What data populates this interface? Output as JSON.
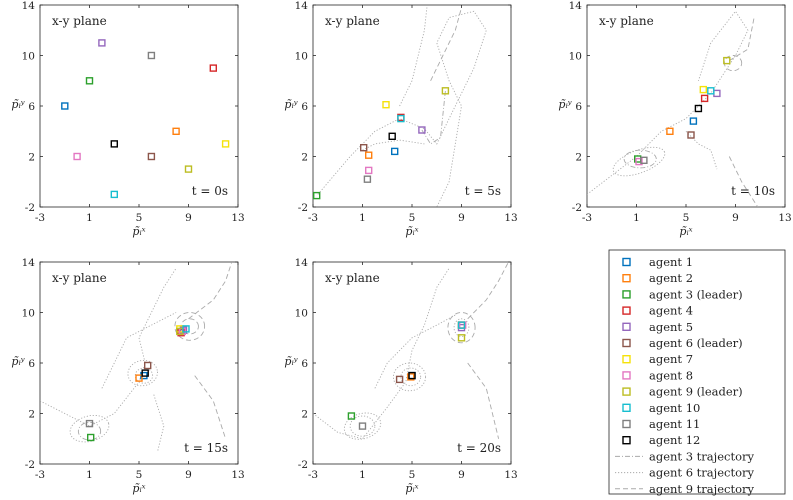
{
  "chart_data": {
    "type": "scatter",
    "x_ticks": [
      -3,
      1,
      5,
      9,
      13
    ],
    "y_ticks": [
      -2,
      2,
      6,
      10,
      14
    ],
    "xlim": [
      -3,
      13
    ],
    "ylim": [
      -2,
      14
    ],
    "xlabel": "p̃ᵢˣ",
    "ylabel": "p̃ᵢʸ",
    "panel_title": "x-y plane",
    "colors": {
      "1": "#0072bd",
      "2": "#ff7f0e",
      "3": "#2ca02c",
      "4": "#d62728",
      "5": "#9467bd",
      "6": "#8c564b",
      "7": "#f5e20a",
      "8": "#e377c2",
      "9": "#bcbd22",
      "10": "#17becf",
      "11": "#7f7f7f",
      "12": "#000000"
    },
    "legend": {
      "agents": [
        {
          "id": "1",
          "label": "agent 1"
        },
        {
          "id": "2",
          "label": "agent 2"
        },
        {
          "id": "3",
          "label": "agent 3 (leader)"
        },
        {
          "id": "4",
          "label": "agent 4"
        },
        {
          "id": "5",
          "label": "agent 5"
        },
        {
          "id": "6",
          "label": "agent 6 (leader)"
        },
        {
          "id": "7",
          "label": "agent 7"
        },
        {
          "id": "8",
          "label": "agent 8"
        },
        {
          "id": "9",
          "label": "agent 9 (leader)"
        },
        {
          "id": "10",
          "label": "agent 10"
        },
        {
          "id": "11",
          "label": "agent 11"
        },
        {
          "id": "12",
          "label": "agent 12"
        }
      ],
      "trajectories": [
        {
          "label": "agent 3 trajectory",
          "style": "dashdot"
        },
        {
          "label": "agent 6 trajectory",
          "style": "dotted"
        },
        {
          "label": "agent 9 trajectory",
          "style": "dashed"
        }
      ]
    },
    "panels": [
      {
        "time_label": "t = 0s",
        "points": [
          {
            "id": "1",
            "x": -1,
            "y": 6
          },
          {
            "id": "2",
            "x": 8,
            "y": 4
          },
          {
            "id": "3",
            "x": 1,
            "y": 8
          },
          {
            "id": "4",
            "x": 11,
            "y": 9
          },
          {
            "id": "5",
            "x": 2,
            "y": 11
          },
          {
            "id": "6",
            "x": 6,
            "y": 2
          },
          {
            "id": "7",
            "x": 12,
            "y": 3
          },
          {
            "id": "8",
            "x": 0,
            "y": 2
          },
          {
            "id": "9",
            "x": 9,
            "y": 1
          },
          {
            "id": "10",
            "x": 3,
            "y": -1
          },
          {
            "id": "11",
            "x": 6,
            "y": 10
          },
          {
            "id": "12",
            "x": 3,
            "y": 3
          }
        ]
      },
      {
        "time_label": "t = 5s",
        "points": [
          {
            "id": "1",
            "x": 3.6,
            "y": 2.4
          },
          {
            "id": "2",
            "x": 1.5,
            "y": 2.1
          },
          {
            "id": "3",
            "x": -2.7,
            "y": -1.1
          },
          {
            "id": "4",
            "x": 4.1,
            "y": 5.1
          },
          {
            "id": "5",
            "x": 5.8,
            "y": 4.1
          },
          {
            "id": "6",
            "x": 1.1,
            "y": 2.7
          },
          {
            "id": "7",
            "x": 2.9,
            "y": 6.1
          },
          {
            "id": "8",
            "x": 1.5,
            "y": 0.9
          },
          {
            "id": "9",
            "x": 7.7,
            "y": 7.2
          },
          {
            "id": "10",
            "x": 4.1,
            "y": 5.0
          },
          {
            "id": "11",
            "x": 1.4,
            "y": 0.2
          },
          {
            "id": "12",
            "x": 3.4,
            "y": 3.6
          }
        ]
      },
      {
        "time_label": "t = 10s",
        "points": [
          {
            "id": "1",
            "x": 5.6,
            "y": 4.8
          },
          {
            "id": "2",
            "x": 3.7,
            "y": 4.0
          },
          {
            "id": "3",
            "x": 1.1,
            "y": 1.8
          },
          {
            "id": "4",
            "x": 6.5,
            "y": 6.6
          },
          {
            "id": "5",
            "x": 7.5,
            "y": 7.0
          },
          {
            "id": "6",
            "x": 5.4,
            "y": 3.7
          },
          {
            "id": "7",
            "x": 6.4,
            "y": 7.3
          },
          {
            "id": "8",
            "x": 1.2,
            "y": 1.6
          },
          {
            "id": "9",
            "x": 8.3,
            "y": 9.6
          },
          {
            "id": "10",
            "x": 7.0,
            "y": 7.2
          },
          {
            "id": "11",
            "x": 1.6,
            "y": 1.7
          },
          {
            "id": "12",
            "x": 6.0,
            "y": 5.8
          }
        ]
      },
      {
        "time_label": "t = 15s",
        "points": [
          {
            "id": "1",
            "x": 5.4,
            "y": 5.0
          },
          {
            "id": "2",
            "x": 5.0,
            "y": 4.8
          },
          {
            "id": "3",
            "x": 1.1,
            "y": 0.1
          },
          {
            "id": "4",
            "x": 8.4,
            "y": 8.4
          },
          {
            "id": "5",
            "x": 8.6,
            "y": 8.6
          },
          {
            "id": "6",
            "x": 5.7,
            "y": 5.8
          },
          {
            "id": "7",
            "x": 8.3,
            "y": 8.7
          },
          {
            "id": "8",
            "x": 8.5,
            "y": 8.5
          },
          {
            "id": "9",
            "x": 8.3,
            "y": 8.5
          },
          {
            "id": "10",
            "x": 8.8,
            "y": 8.7
          },
          {
            "id": "11",
            "x": 1.0,
            "y": 1.2
          },
          {
            "id": "12",
            "x": 5.5,
            "y": 5.2
          }
        ]
      },
      {
        "time_label": "t = 20s",
        "points": [
          {
            "id": "1",
            "x": 5.0,
            "y": 5.0
          },
          {
            "id": "2",
            "x": 4.9,
            "y": 4.9
          },
          {
            "id": "3",
            "x": 0.1,
            "y": 1.8
          },
          {
            "id": "4",
            "x": 9.0,
            "y": 9.0
          },
          {
            "id": "5",
            "x": 9.0,
            "y": 8.8
          },
          {
            "id": "6",
            "x": 4.0,
            "y": 4.7
          },
          {
            "id": "7",
            "x": 9.0,
            "y": 9.0
          },
          {
            "id": "8",
            "x": 9.1,
            "y": 9.0
          },
          {
            "id": "9",
            "x": 9.0,
            "y": 8.0
          },
          {
            "id": "10",
            "x": 9.0,
            "y": 9.0
          },
          {
            "id": "11",
            "x": 1.0,
            "y": 1.0
          },
          {
            "id": "12",
            "x": 5.0,
            "y": 5.0
          }
        ]
      }
    ]
  }
}
